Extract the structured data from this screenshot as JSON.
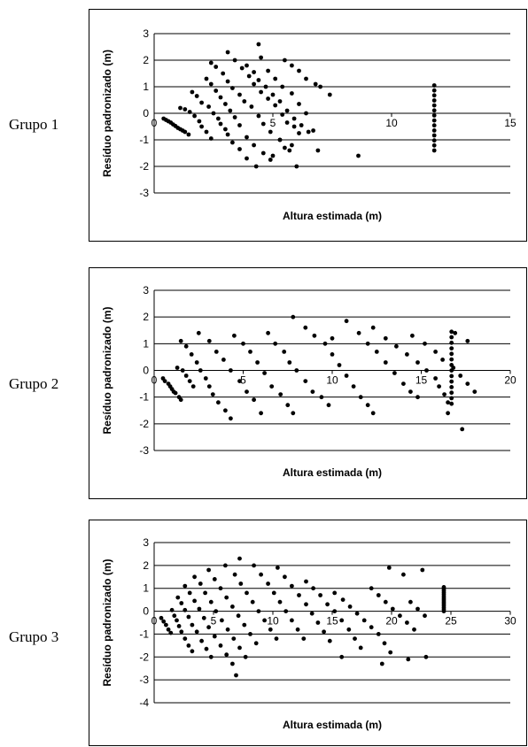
{
  "groups": [
    {
      "label": "Grupo 1"
    },
    {
      "label": "Grupo 2"
    },
    {
      "label": "Grupo 3"
    }
  ],
  "chart_data": [
    {
      "type": "scatter",
      "title": "",
      "xlabel": "Altura estimada (m)",
      "ylabel": "Resíduo padronizado (m)",
      "xlim": [
        0,
        15
      ],
      "ylim": [
        -3,
        3
      ],
      "xticks": [
        0,
        5,
        10,
        15
      ],
      "yticks": [
        3,
        2,
        1,
        0,
        -1,
        -2,
        -3
      ],
      "grid": true,
      "points": [
        [
          0.4,
          -0.2
        ],
        [
          0.5,
          -0.25
        ],
        [
          0.6,
          -0.3
        ],
        [
          0.7,
          -0.35
        ],
        [
          0.8,
          -0.42
        ],
        [
          0.9,
          -0.48
        ],
        [
          1.0,
          -0.55
        ],
        [
          1.1,
          -0.6
        ],
        [
          1.2,
          -0.65
        ],
        [
          1.3,
          -0.7
        ],
        [
          1.45,
          -0.8
        ],
        [
          1.1,
          0.2
        ],
        [
          1.3,
          0.15
        ],
        [
          1.5,
          0.05
        ],
        [
          1.7,
          -0.1
        ],
        [
          1.9,
          -0.3
        ],
        [
          2.0,
          -0.5
        ],
        [
          2.2,
          -0.7
        ],
        [
          2.4,
          -0.95
        ],
        [
          1.6,
          0.8
        ],
        [
          1.8,
          0.65
        ],
        [
          2.0,
          0.4
        ],
        [
          2.3,
          0.25
        ],
        [
          2.5,
          0.0
        ],
        [
          2.7,
          -0.2
        ],
        [
          2.8,
          -0.4
        ],
        [
          3.0,
          -0.6
        ],
        [
          3.1,
          -0.8
        ],
        [
          3.3,
          -1.1
        ],
        [
          3.6,
          -1.35
        ],
        [
          3.9,
          -1.7
        ],
        [
          2.2,
          1.3
        ],
        [
          2.4,
          1.1
        ],
        [
          2.6,
          0.85
        ],
        [
          2.8,
          0.6
        ],
        [
          3.0,
          0.35
        ],
        [
          3.2,
          0.1
        ],
        [
          3.4,
          -0.15
        ],
        [
          3.6,
          -0.45
        ],
        [
          3.9,
          -0.9
        ],
        [
          4.2,
          -1.2
        ],
        [
          4.6,
          -1.5
        ],
        [
          5.0,
          -1.6
        ],
        [
          2.4,
          1.9
        ],
        [
          2.6,
          1.75
        ],
        [
          2.9,
          1.5
        ],
        [
          3.1,
          1.2
        ],
        [
          3.3,
          0.95
        ],
        [
          3.6,
          0.7
        ],
        [
          3.8,
          0.45
        ],
        [
          4.1,
          0.25
        ],
        [
          4.4,
          -0.1
        ],
        [
          4.6,
          -0.4
        ],
        [
          4.9,
          -0.7
        ],
        [
          5.3,
          -1.0
        ],
        [
          5.5,
          -1.3
        ],
        [
          5.8,
          -1.2
        ],
        [
          3.1,
          2.3
        ],
        [
          3.4,
          2.0
        ],
        [
          3.7,
          1.7
        ],
        [
          4.0,
          1.4
        ],
        [
          4.2,
          1.1
        ],
        [
          4.5,
          0.8
        ],
        [
          4.8,
          0.55
        ],
        [
          5.1,
          0.3
        ],
        [
          5.4,
          -0.05
        ],
        [
          5.6,
          -0.35
        ],
        [
          5.9,
          -0.5
        ],
        [
          6.1,
          -0.75
        ],
        [
          3.9,
          1.8
        ],
        [
          4.2,
          1.55
        ],
        [
          4.4,
          1.25
        ],
        [
          4.7,
          1.0
        ],
        [
          5.0,
          0.7
        ],
        [
          5.3,
          0.45
        ],
        [
          5.6,
          0.1
        ],
        [
          5.9,
          -0.2
        ],
        [
          6.2,
          -0.45
        ],
        [
          6.5,
          -0.7
        ],
        [
          6.7,
          -0.65
        ],
        [
          4.4,
          2.6
        ],
        [
          4.5,
          2.1
        ],
        [
          4.8,
          1.6
        ],
        [
          5.1,
          1.3
        ],
        [
          5.4,
          1.0
        ],
        [
          5.8,
          0.75
        ],
        [
          6.1,
          0.35
        ],
        [
          6.4,
          0.0
        ],
        [
          5.5,
          2.0
        ],
        [
          5.8,
          1.8
        ],
        [
          6.1,
          1.6
        ],
        [
          6.4,
          1.3
        ],
        [
          6.8,
          1.1
        ],
        [
          7.0,
          1.0
        ],
        [
          7.4,
          0.7
        ],
        [
          6.9,
          -1.4
        ],
        [
          6.0,
          -2.0
        ],
        [
          8.6,
          -1.6
        ],
        [
          5.3,
          -1.0
        ],
        [
          5.7,
          -1.4
        ],
        [
          4.3,
          -2.0
        ],
        [
          4.9,
          -1.75
        ]
      ]
    },
    {
      "type": "scatter",
      "title": "",
      "xlabel": "Altura estimada (m)",
      "ylabel": "Resíduo padronizado (m)",
      "xlim": [
        0,
        20
      ],
      "ylim": [
        -3,
        3
      ],
      "xticks": [
        0,
        5,
        10,
        15,
        20
      ],
      "yticks": [
        3,
        2,
        1,
        0,
        -1,
        -2,
        -3
      ],
      "grid": true,
      "points": [
        [
          0.5,
          -0.3
        ],
        [
          0.6,
          -0.4
        ],
        [
          0.8,
          -0.5
        ],
        [
          0.9,
          -0.6
        ],
        [
          1.0,
          -0.7
        ],
        [
          1.1,
          -0.8
        ],
        [
          1.2,
          -0.85
        ],
        [
          1.4,
          -1.0
        ],
        [
          1.5,
          -1.1
        ],
        [
          1.3,
          0.1
        ],
        [
          1.6,
          0.0
        ],
        [
          1.8,
          -0.2
        ],
        [
          2.0,
          -0.4
        ],
        [
          2.2,
          -0.6
        ],
        [
          1.5,
          1.1
        ],
        [
          1.8,
          0.9
        ],
        [
          2.1,
          0.6
        ],
        [
          2.4,
          0.3
        ],
        [
          2.6,
          0.0
        ],
        [
          2.9,
          -0.3
        ],
        [
          3.1,
          -0.6
        ],
        [
          3.3,
          -0.9
        ],
        [
          3.6,
          -1.2
        ],
        [
          4.0,
          -1.5
        ],
        [
          4.3,
          -1.8
        ],
        [
          2.5,
          1.4
        ],
        [
          3.1,
          1.1
        ],
        [
          3.5,
          0.7
        ],
        [
          3.9,
          0.4
        ],
        [
          4.3,
          0.0
        ],
        [
          4.8,
          -0.4
        ],
        [
          5.2,
          -0.8
        ],
        [
          5.6,
          -1.1
        ],
        [
          6.0,
          -1.6
        ],
        [
          4.5,
          1.3
        ],
        [
          5.0,
          1.0
        ],
        [
          5.4,
          0.7
        ],
        [
          5.8,
          0.3
        ],
        [
          6.2,
          -0.1
        ],
        [
          6.6,
          -0.6
        ],
        [
          7.1,
          -0.9
        ],
        [
          7.5,
          -1.3
        ],
        [
          7.8,
          -1.6
        ],
        [
          6.4,
          1.4
        ],
        [
          6.8,
          1.0
        ],
        [
          7.3,
          0.7
        ],
        [
          7.6,
          0.3
        ],
        [
          8.0,
          0.0
        ],
        [
          8.5,
          -0.4
        ],
        [
          8.9,
          -0.8
        ],
        [
          9.4,
          -1.0
        ],
        [
          9.8,
          -1.3
        ],
        [
          7.8,
          2.0
        ],
        [
          8.5,
          1.6
        ],
        [
          9.0,
          1.3
        ],
        [
          9.6,
          1.0
        ],
        [
          10.0,
          0.6
        ],
        [
          10.4,
          0.2
        ],
        [
          10.8,
          -0.2
        ],
        [
          11.2,
          -0.6
        ],
        [
          11.6,
          -1.0
        ],
        [
          12.0,
          -1.3
        ],
        [
          12.3,
          -1.6
        ],
        [
          10.0,
          1.2
        ],
        [
          10.8,
          1.85
        ],
        [
          11.5,
          1.4
        ],
        [
          12.0,
          1.0
        ],
        [
          12.5,
          0.7
        ],
        [
          13.0,
          0.3
        ],
        [
          13.5,
          -0.1
        ],
        [
          14.0,
          -0.5
        ],
        [
          14.4,
          -0.8
        ],
        [
          14.8,
          -1.0
        ],
        [
          12.3,
          1.6
        ],
        [
          13.0,
          1.2
        ],
        [
          13.6,
          0.9
        ],
        [
          14.2,
          0.6
        ],
        [
          14.8,
          0.3
        ],
        [
          15.3,
          0.0
        ],
        [
          15.8,
          -0.3
        ],
        [
          16.0,
          -0.6
        ],
        [
          16.3,
          -0.9
        ],
        [
          16.5,
          -1.2
        ],
        [
          14.5,
          1.3
        ],
        [
          15.2,
          1.0
        ],
        [
          15.8,
          0.7
        ],
        [
          16.2,
          0.4
        ],
        [
          16.8,
          0.1
        ],
        [
          17.2,
          -0.2
        ],
        [
          17.6,
          -0.5
        ],
        [
          18.0,
          -0.8
        ],
        [
          17.3,
          -2.2
        ],
        [
          16.5,
          -1.6
        ],
        [
          16.9,
          1.4
        ],
        [
          17.6,
          1.1
        ]
      ]
    },
    {
      "type": "scatter",
      "title": "",
      "xlabel": "Altura estimada (m)",
      "ylabel": "Resíduo padronizado (m)",
      "xlim": [
        0,
        30
      ],
      "ylim": [
        -4,
        3
      ],
      "xticks": [
        0,
        5,
        10,
        15,
        20,
        25,
        30
      ],
      "yticks": [
        3,
        2,
        1,
        0,
        -1,
        -2,
        -3,
        -4
      ],
      "grid": true,
      "points": [
        [
          0.6,
          -0.3
        ],
        [
          0.8,
          -0.45
        ],
        [
          1.0,
          -0.6
        ],
        [
          1.2,
          -0.8
        ],
        [
          1.4,
          -0.95
        ],
        [
          1.5,
          0.05
        ],
        [
          1.7,
          -0.2
        ],
        [
          1.9,
          -0.4
        ],
        [
          2.1,
          -0.65
        ],
        [
          2.3,
          -0.9
        ],
        [
          2.6,
          -1.2
        ],
        [
          2.9,
          -1.5
        ],
        [
          3.2,
          -1.75
        ],
        [
          2.0,
          0.6
        ],
        [
          2.3,
          0.35
        ],
        [
          2.6,
          0.05
        ],
        [
          2.9,
          -0.25
        ],
        [
          3.2,
          -0.6
        ],
        [
          3.6,
          -0.9
        ],
        [
          4.0,
          -1.3
        ],
        [
          4.4,
          -1.65
        ],
        [
          4.8,
          -2.0
        ],
        [
          2.6,
          1.1
        ],
        [
          3.0,
          0.8
        ],
        [
          3.4,
          0.45
        ],
        [
          3.8,
          0.1
        ],
        [
          4.2,
          -0.3
        ],
        [
          4.6,
          -0.7
        ],
        [
          5.1,
          -1.1
        ],
        [
          5.6,
          -1.5
        ],
        [
          6.1,
          -1.9
        ],
        [
          6.6,
          -2.3
        ],
        [
          6.9,
          -2.8
        ],
        [
          3.4,
          1.5
        ],
        [
          3.9,
          1.2
        ],
        [
          4.3,
          0.8
        ],
        [
          4.8,
          0.4
        ],
        [
          5.2,
          0.0
        ],
        [
          5.7,
          -0.4
        ],
        [
          6.2,
          -0.8
        ],
        [
          6.7,
          -1.2
        ],
        [
          7.2,
          -1.6
        ],
        [
          7.7,
          -2.0
        ],
        [
          4.6,
          1.8
        ],
        [
          5.1,
          1.4
        ],
        [
          5.6,
          1.0
        ],
        [
          6.1,
          0.6
        ],
        [
          6.6,
          0.2
        ],
        [
          7.1,
          -0.2
        ],
        [
          7.6,
          -0.6
        ],
        [
          8.1,
          -1.0
        ],
        [
          8.6,
          -1.4
        ],
        [
          6.0,
          2.0
        ],
        [
          6.8,
          1.6
        ],
        [
          7.3,
          1.2
        ],
        [
          7.8,
          0.8
        ],
        [
          8.3,
          0.4
        ],
        [
          8.8,
          0.0
        ],
        [
          9.3,
          -0.4
        ],
        [
          9.8,
          -0.8
        ],
        [
          10.3,
          -1.2
        ],
        [
          7.2,
          2.3
        ],
        [
          8.4,
          2.0
        ],
        [
          9.0,
          1.6
        ],
        [
          9.6,
          1.2
        ],
        [
          10.1,
          0.8
        ],
        [
          10.6,
          0.4
        ],
        [
          11.1,
          0.0
        ],
        [
          11.6,
          -0.4
        ],
        [
          12.1,
          -0.8
        ],
        [
          12.6,
          -1.2
        ],
        [
          10.4,
          1.9
        ],
        [
          11.0,
          1.5
        ],
        [
          11.6,
          1.1
        ],
        [
          12.2,
          0.7
        ],
        [
          12.8,
          0.3
        ],
        [
          13.3,
          -0.1
        ],
        [
          13.8,
          -0.5
        ],
        [
          14.3,
          -0.9
        ],
        [
          14.8,
          -1.3
        ],
        [
          12.8,
          1.3
        ],
        [
          13.4,
          1.0
        ],
        [
          14.0,
          0.7
        ],
        [
          14.6,
          0.3
        ],
        [
          15.2,
          0.0
        ],
        [
          15.8,
          -0.4
        ],
        [
          16.4,
          -0.8
        ],
        [
          16.9,
          -1.2
        ],
        [
          17.4,
          -1.6
        ],
        [
          15.2,
          0.8
        ],
        [
          15.9,
          0.5
        ],
        [
          16.5,
          0.2
        ],
        [
          17.1,
          -0.1
        ],
        [
          17.7,
          -0.4
        ],
        [
          18.3,
          -0.7
        ],
        [
          18.9,
          -1.0
        ],
        [
          19.4,
          -1.4
        ],
        [
          19.9,
          -1.8
        ],
        [
          18.3,
          1.0
        ],
        [
          18.9,
          0.7
        ],
        [
          19.5,
          0.4
        ],
        [
          20.1,
          0.1
        ],
        [
          20.7,
          -0.2
        ],
        [
          21.3,
          -0.5
        ],
        [
          21.9,
          -0.8
        ],
        [
          19.8,
          1.9
        ],
        [
          21.0,
          1.6
        ],
        [
          21.6,
          0.4
        ],
        [
          22.2,
          0.1
        ],
        [
          22.8,
          -0.2
        ],
        [
          21.4,
          -2.1
        ],
        [
          22.9,
          -2.0
        ],
        [
          19.2,
          -2.3
        ],
        [
          15.8,
          -2.0
        ],
        [
          22.6,
          1.8
        ]
      ]
    }
  ]
}
